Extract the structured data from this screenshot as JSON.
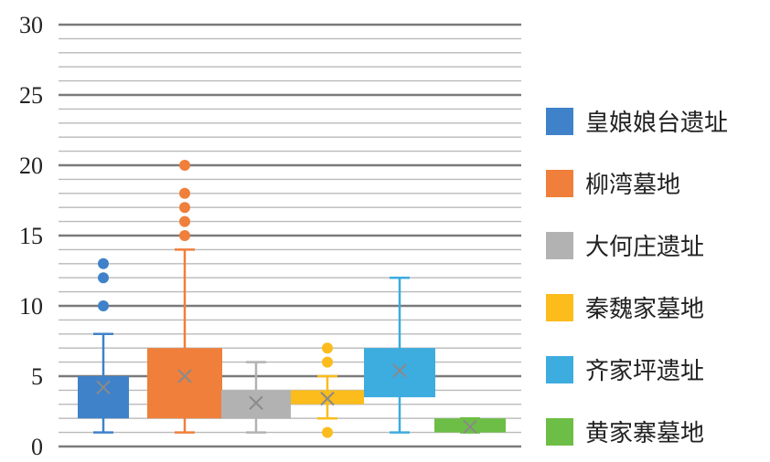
{
  "chart_data": {
    "type": "box",
    "ylim": [
      0,
      30
    ],
    "y_ticks": [
      "0",
      "5",
      "10",
      "15",
      "20",
      "25",
      "30"
    ],
    "minor_grid_step": 1,
    "grid": true,
    "legend_position": "right",
    "series": [
      {
        "name": "皇娘娘台遗址",
        "color": "#3f82c9",
        "min": 1,
        "q1": 2,
        "median": 5,
        "q3": 5,
        "max": 8,
        "mean": 4.2,
        "outliers": [
          10,
          12,
          13
        ]
      },
      {
        "name": "柳湾墓地",
        "color": "#ef7f3b",
        "min": 1,
        "q1": 2,
        "median": 7,
        "q3": 7,
        "max": 14,
        "mean": 5,
        "outliers": [
          15,
          16,
          17,
          18,
          20
        ]
      },
      {
        "name": "大何庄遗址",
        "color": "#b2b2b2",
        "min": 1,
        "q1": 2,
        "median": 4,
        "q3": 4,
        "max": 6,
        "mean": 3.1,
        "outliers": []
      },
      {
        "name": "秦魏家墓地",
        "color": "#fbbc1c",
        "min": 2,
        "q1": 3,
        "median": 4,
        "q3": 4,
        "max": 5,
        "mean": 3.4,
        "outliers": [
          1,
          6,
          7
        ]
      },
      {
        "name": "齐家坪遗址",
        "color": "#3dacdf",
        "min": 1,
        "q1": 3.5,
        "median": 7,
        "q3": 7,
        "max": 12,
        "mean": 5.4,
        "outliers": []
      },
      {
        "name": "黄家寨墓地",
        "color": "#6dbe46",
        "min": 1,
        "q1": 1,
        "median": 2,
        "q3": 2,
        "max": 2,
        "mean": 1.4,
        "outliers": []
      }
    ]
  }
}
